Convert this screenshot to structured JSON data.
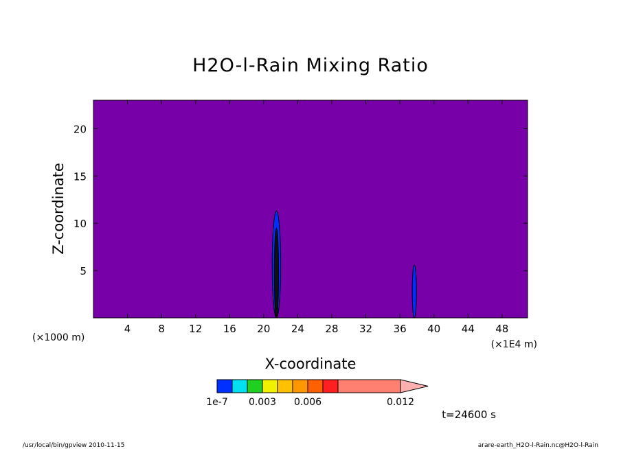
{
  "chart_data": {
    "type": "heatmap",
    "title": "H2O-l-Rain Mixing Ratio",
    "xlabel": "X-coordinate",
    "ylabel": "Z-coordinate",
    "x_unit_left": "(×1000 m)",
    "x_unit_right": "(×1E4 m)",
    "xlim": [
      0,
      51
    ],
    "ylim": [
      0,
      23
    ],
    "x_ticks": [
      4,
      8,
      12,
      16,
      20,
      24,
      28,
      32,
      36,
      40,
      44,
      48
    ],
    "y_ticks": [
      5,
      10,
      15,
      20
    ],
    "background_color": "#7800a8",
    "features": [
      {
        "x_center": 21.5,
        "z_bottom": 0,
        "z_top": 11.3,
        "half_width": 0.5,
        "color": "#0030ff"
      },
      {
        "x_center": 21.5,
        "z_bottom": 0,
        "z_top": 9.5,
        "half_width": 0.25,
        "color": "#101010"
      },
      {
        "x_center": 37.7,
        "z_bottom": 0,
        "z_top": 5.6,
        "half_width": 0.25,
        "color": "#0030ff"
      }
    ],
    "colorbar": {
      "colors": [
        "#0030ff",
        "#00e0f0",
        "#20d020",
        "#f0f000",
        "#ffc000",
        "#ff9800",
        "#ff6000",
        "#ff2020",
        "#ff8070",
        "#ffb0b0"
      ],
      "tick_labels": [
        "1e-7",
        "0.003",
        "0.006",
        "0.012"
      ]
    },
    "time_label": "t=24600 s"
  },
  "footer": {
    "left": "/usr/local/bin/gpview 2010-11-15",
    "right": "arare-earth_H2O-l-Rain.nc@H2O-l-Rain"
  }
}
